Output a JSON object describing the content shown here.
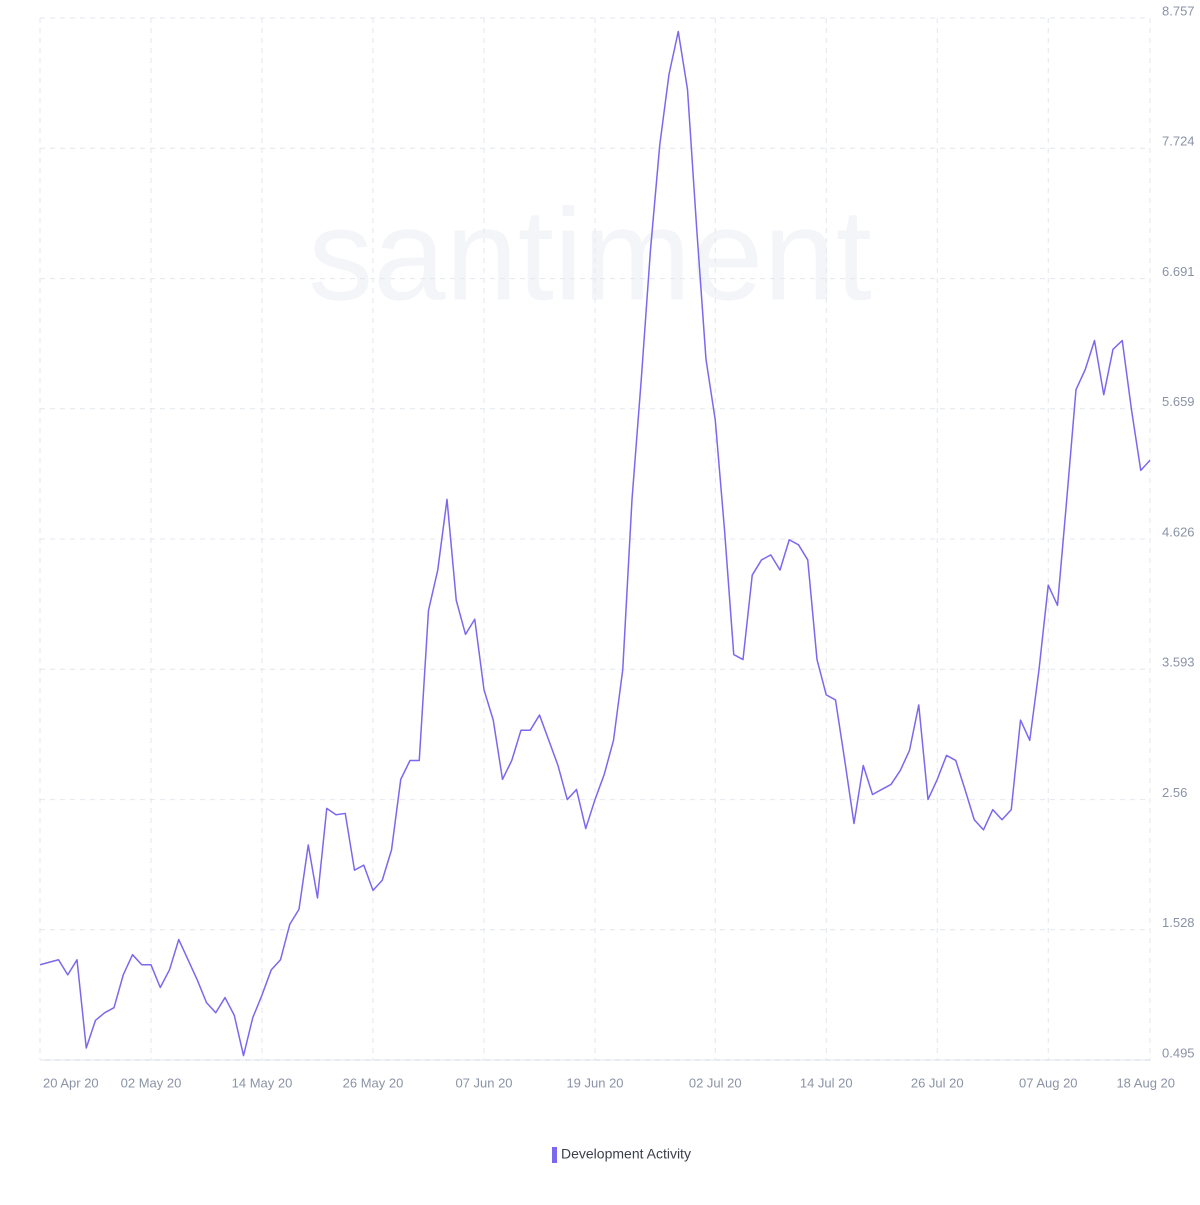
{
  "chart_data": {
    "type": "line",
    "watermark": "santiment",
    "x": [
      "2020-04-20",
      "2020-04-21",
      "2020-04-22",
      "2020-04-23",
      "2020-04-24",
      "2020-04-25",
      "2020-04-26",
      "2020-04-27",
      "2020-04-28",
      "2020-04-29",
      "2020-04-30",
      "2020-05-01",
      "2020-05-02",
      "2020-05-03",
      "2020-05-04",
      "2020-05-05",
      "2020-05-06",
      "2020-05-07",
      "2020-05-08",
      "2020-05-09",
      "2020-05-10",
      "2020-05-11",
      "2020-05-12",
      "2020-05-13",
      "2020-05-14",
      "2020-05-15",
      "2020-05-16",
      "2020-05-17",
      "2020-05-18",
      "2020-05-19",
      "2020-05-20",
      "2020-05-21",
      "2020-05-22",
      "2020-05-23",
      "2020-05-24",
      "2020-05-25",
      "2020-05-26",
      "2020-05-27",
      "2020-05-28",
      "2020-05-29",
      "2020-05-30",
      "2020-05-31",
      "2020-06-01",
      "2020-06-02",
      "2020-06-03",
      "2020-06-04",
      "2020-06-05",
      "2020-06-06",
      "2020-06-07",
      "2020-06-08",
      "2020-06-09",
      "2020-06-10",
      "2020-06-11",
      "2020-06-12",
      "2020-06-13",
      "2020-06-14",
      "2020-06-15",
      "2020-06-16",
      "2020-06-17",
      "2020-06-18",
      "2020-06-19",
      "2020-06-20",
      "2020-06-21",
      "2020-06-22",
      "2020-06-23",
      "2020-06-24",
      "2020-06-25",
      "2020-06-26",
      "2020-06-27",
      "2020-06-28",
      "2020-06-29",
      "2020-06-30",
      "2020-07-01",
      "2020-07-02",
      "2020-07-03",
      "2020-07-04",
      "2020-07-05",
      "2020-07-06",
      "2020-07-07",
      "2020-07-08",
      "2020-07-09",
      "2020-07-10",
      "2020-07-11",
      "2020-07-12",
      "2020-07-13",
      "2020-07-14",
      "2020-07-15",
      "2020-07-16",
      "2020-07-17",
      "2020-07-18",
      "2020-07-19",
      "2020-07-20",
      "2020-07-21",
      "2020-07-22",
      "2020-07-23",
      "2020-07-24",
      "2020-07-25",
      "2020-07-26",
      "2020-07-27",
      "2020-07-28",
      "2020-07-29",
      "2020-07-30",
      "2020-07-31",
      "2020-08-01",
      "2020-08-02",
      "2020-08-03",
      "2020-08-04",
      "2020-08-05",
      "2020-08-06",
      "2020-08-07",
      "2020-08-08",
      "2020-08-09",
      "2020-08-10",
      "2020-08-11",
      "2020-08-12",
      "2020-08-13",
      "2020-08-14",
      "2020-08-15",
      "2020-08-16",
      "2020-08-17",
      "2020-08-18"
    ],
    "series": [
      {
        "name": "Development Activity",
        "color": "#7b68ee",
        "values": [
          1.25,
          1.27,
          1.29,
          1.17,
          1.29,
          0.59,
          0.81,
          0.87,
          0.91,
          1.17,
          1.33,
          1.25,
          1.25,
          1.07,
          1.21,
          1.45,
          1.29,
          1.13,
          0.95,
          0.87,
          0.99,
          0.85,
          0.53,
          0.83,
          1.01,
          1.21,
          1.29,
          1.57,
          1.69,
          2.2,
          1.78,
          2.49,
          2.44,
          2.45,
          2.0,
          2.04,
          1.84,
          1.92,
          2.16,
          2.72,
          2.87,
          2.87,
          4.06,
          4.38,
          4.94,
          4.14,
          3.87,
          3.99,
          3.43,
          3.19,
          2.72,
          2.87,
          3.11,
          3.11,
          3.23,
          3.03,
          2.83,
          2.56,
          2.64,
          2.33,
          2.56,
          2.76,
          3.03,
          3.59,
          4.94,
          5.89,
          6.92,
          7.75,
          8.31,
          8.65,
          8.19,
          7.08,
          6.05,
          5.57,
          4.7,
          3.71,
          3.67,
          4.34,
          4.46,
          4.5,
          4.38,
          4.62,
          4.58,
          4.46,
          3.67,
          3.39,
          3.35,
          2.87,
          2.37,
          2.83,
          2.6,
          2.64,
          2.68,
          2.79,
          2.95,
          3.31,
          2.56,
          2.72,
          2.91,
          2.87,
          2.64,
          2.4,
          2.32,
          2.48,
          2.4,
          2.48,
          3.19,
          3.03,
          3.59,
          4.26,
          4.1,
          4.94,
          5.81,
          5.97,
          6.2,
          5.77,
          6.13,
          6.2,
          5.65,
          5.17,
          5.25
        ]
      }
    ],
    "xlim": [
      "2020-04-20",
      "2020-08-18"
    ],
    "xticks": [
      {
        "value": "2020-04-20",
        "label": "20 Apr 20"
      },
      {
        "value": "2020-05-02",
        "label": "02 May 20"
      },
      {
        "value": "2020-05-14",
        "label": "14 May 20"
      },
      {
        "value": "2020-05-26",
        "label": "26 May 20"
      },
      {
        "value": "2020-06-07",
        "label": "07 Jun 20"
      },
      {
        "value": "2020-06-19",
        "label": "19 Jun 20"
      },
      {
        "value": "2020-07-02",
        "label": "02 Jul 20"
      },
      {
        "value": "2020-07-14",
        "label": "14 Jul 20"
      },
      {
        "value": "2020-07-26",
        "label": "26 Jul 20"
      },
      {
        "value": "2020-08-07",
        "label": "07 Aug 20"
      },
      {
        "value": "2020-08-18",
        "label": "18 Aug 20"
      }
    ],
    "ylim": [
      0.495,
      8.757
    ],
    "yticks": [
      0.495,
      1.528,
      2.56,
      3.593,
      4.626,
      5.659,
      6.691,
      7.724,
      8.757
    ],
    "grid": true
  }
}
